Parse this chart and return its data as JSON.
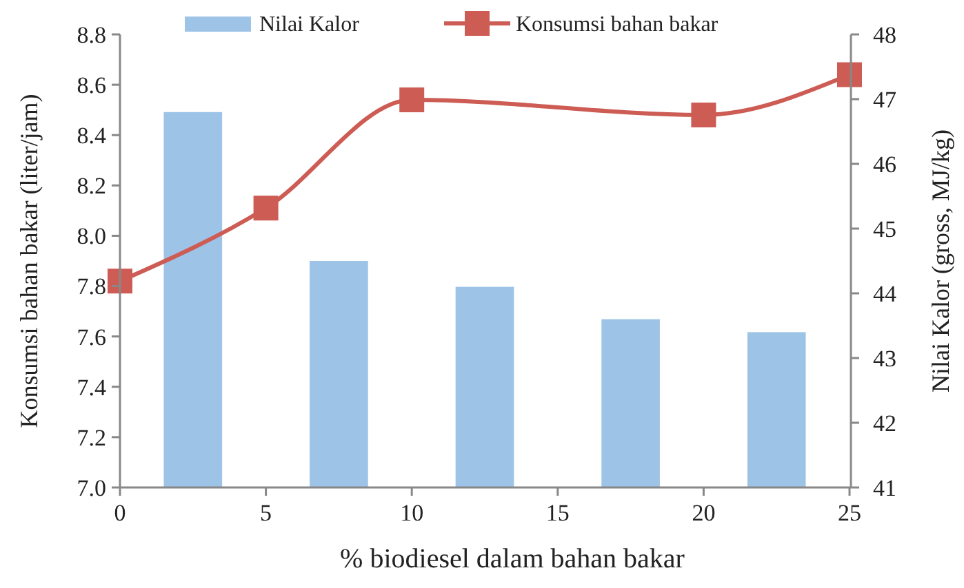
{
  "chart_data": {
    "type": "bar",
    "xlabel": "% biodiesel dalam bahan bakar",
    "ylabel": "Konsumsi bahan bakar (liter/jam)",
    "y2label": "Nilai Kalor (gross, MJ/kg)",
    "xlim": [
      0,
      25
    ],
    "xticks": [
      0,
      5,
      10,
      15,
      20,
      25
    ],
    "ylim": [
      7.0,
      8.8
    ],
    "yticks": [
      {
        "value": 7.0,
        "label": "7.0"
      },
      7.2,
      7.4,
      7.6,
      7.8,
      {
        "value": 8.0,
        "label": "8.0"
      },
      8.2,
      8.4,
      8.6,
      8.8
    ],
    "y2lim": [
      41,
      48
    ],
    "y2ticks": [
      41,
      42,
      43,
      44,
      45,
      46,
      47,
      48
    ],
    "series": [
      {
        "name": "Nilai Kalor",
        "axis": "y2",
        "color": "#9dc3e6",
        "x": [
          2.5,
          7.5,
          12.5,
          17.5,
          22.5
        ],
        "values": [
          46.8,
          44.5,
          44.1,
          43.6,
          43.4
        ]
      },
      {
        "name": "Konsumsi bahan bakar",
        "type": "line",
        "color": "#cd5c55",
        "x": [
          0,
          5,
          10,
          20,
          25
        ],
        "values": [
          7.82,
          8.11,
          8.54,
          8.48,
          8.64
        ]
      }
    ],
    "marker": "square",
    "line_style": "solid",
    "grid": false,
    "legend": "top"
  }
}
